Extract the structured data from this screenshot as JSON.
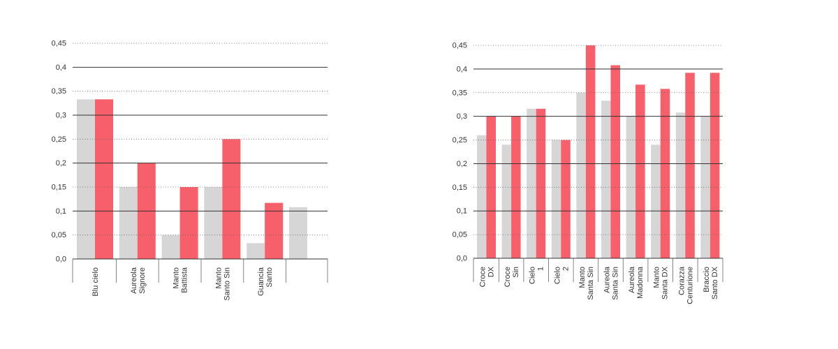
{
  "colors": {
    "series_a": "#d6d6d6",
    "series_b": "#f75f6a",
    "grid_major": "#333333",
    "grid_minor": "#666666",
    "text": "#333333"
  },
  "chart_data": [
    {
      "type": "bar",
      "title": "",
      "xlabel": "",
      "ylabel": "",
      "ylim": [
        0,
        0.45
      ],
      "yticks": [
        0,
        0.05,
        0.1,
        0.15,
        0.2,
        0.25,
        0.3,
        0.35,
        0.4,
        0.45
      ],
      "ytick_labels": [
        "0,0",
        "0,05",
        "0,1",
        "0,15",
        "0,2",
        "0,25",
        "0,3",
        "0,35",
        "0,4",
        "0,45"
      ],
      "grid": "horizontal: solid at 0.1 intervals, dotted at intermediate 0.05",
      "categories": [
        [
          "Blu cielo"
        ],
        [
          "Aureola",
          "Signore"
        ],
        [
          "Manto",
          "Battista"
        ],
        [
          "Manto",
          "Santo Sin"
        ],
        [
          "Guancia",
          "Santo"
        ],
        [
          ""
        ]
      ],
      "series": [
        {
          "values": [
            0.333,
            0.15,
            0.05,
            0.15,
            0.033,
            0.108
          ]
        },
        {
          "values": [
            0.333,
            0.2,
            0.15,
            0.25,
            0.117,
            null
          ]
        }
      ]
    },
    {
      "type": "bar",
      "title": "",
      "xlabel": "",
      "ylabel": "",
      "ylim": [
        0,
        0.45
      ],
      "yticks": [
        0,
        0.05,
        0.1,
        0.15,
        0.2,
        0.25,
        0.3,
        0.35,
        0.4,
        0.45
      ],
      "ytick_labels": [
        "0,0",
        "0,05",
        "0,1",
        "0,15",
        "0,2",
        "0,25",
        "0,3",
        "0,35",
        "0,4",
        "0,45"
      ],
      "grid": "horizontal: solid at 0.1 intervals, dotted at intermediate 0.05",
      "categories": [
        [
          "Croce",
          "DX"
        ],
        [
          "Croce",
          "Sin"
        ],
        [
          "Cielo",
          "1"
        ],
        [
          "Cielo",
          "2"
        ],
        [
          "Manto",
          "Santa Sin"
        ],
        [
          "Aureola",
          "Santa Sin"
        ],
        [
          "Aureola",
          "Madonna"
        ],
        [
          "Manto",
          "Santa DX"
        ],
        [
          "Corazza",
          "Centurione"
        ],
        [
          "Braccio",
          "Santo DX"
        ]
      ],
      "series": [
        {
          "values": [
            0.26,
            0.24,
            0.316,
            0.25,
            0.35,
            0.333,
            0.3,
            0.24,
            0.308,
            0.3
          ]
        },
        {
          "values": [
            0.3,
            0.3,
            0.316,
            0.25,
            0.45,
            0.408,
            0.367,
            0.358,
            0.392,
            0.392
          ]
        }
      ]
    }
  ]
}
